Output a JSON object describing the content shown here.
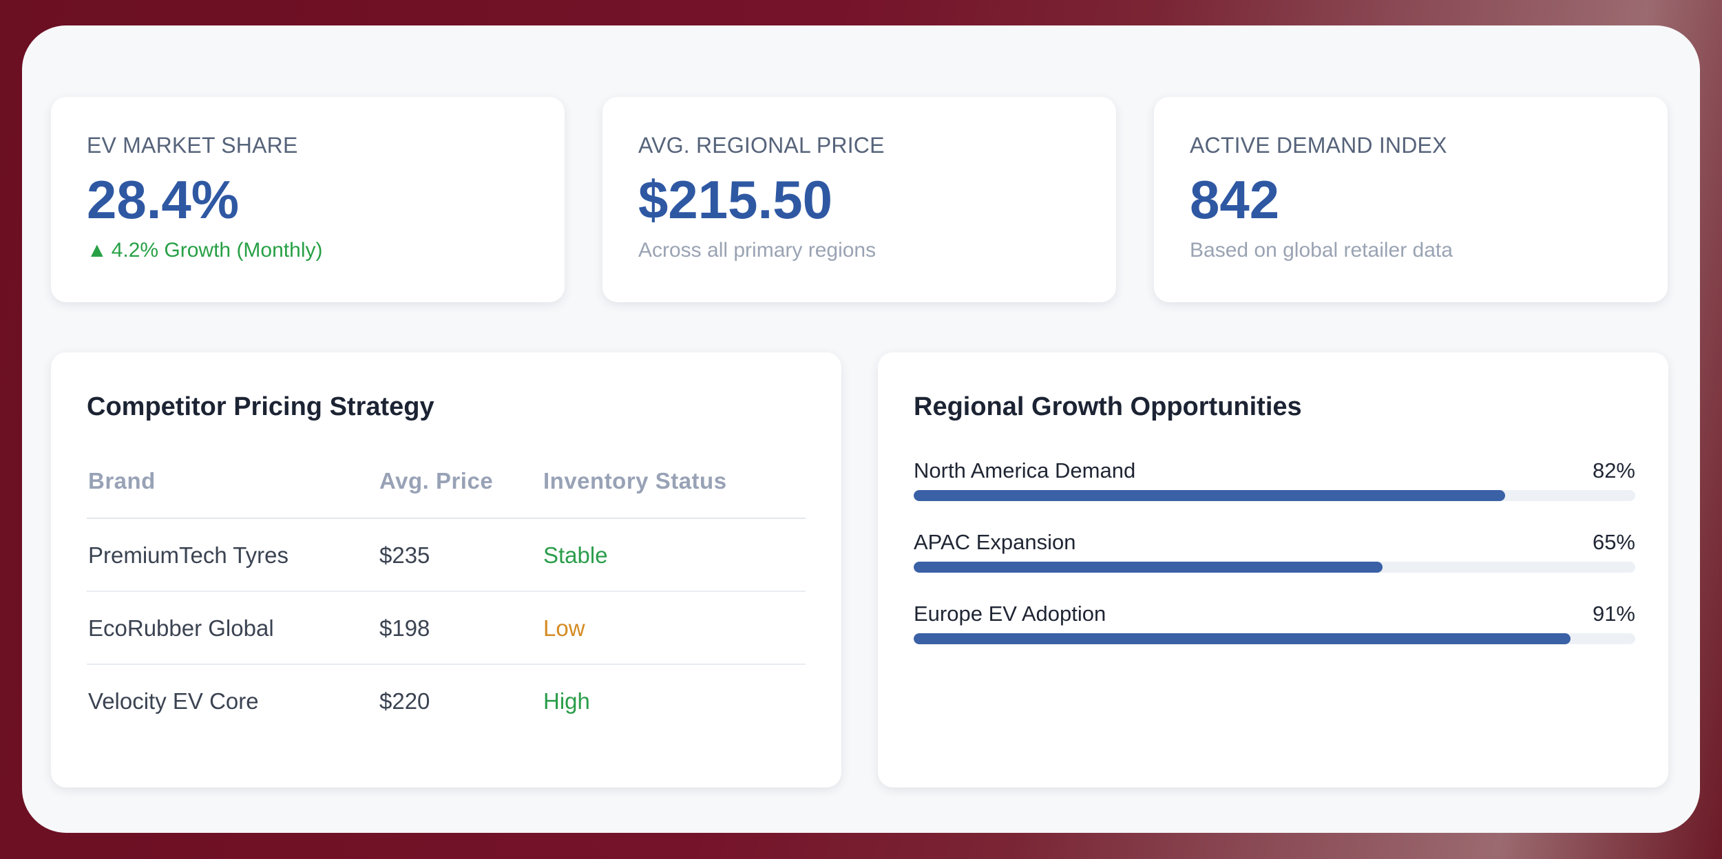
{
  "kpis": [
    {
      "label": "EV MARKET SHARE",
      "value": "28.4%",
      "sub_icon": "▲",
      "sub_text": "4.2% Growth (Monthly)",
      "sub_color": "#27a046"
    },
    {
      "label": "AVG. REGIONAL PRICE",
      "value": "$215.50",
      "sub_text": "Across all primary regions"
    },
    {
      "label": "ACTIVE DEMAND INDEX",
      "value": "842",
      "sub_text": "Based on global retailer data"
    }
  ],
  "pricing": {
    "title": "Competitor Pricing Strategy",
    "columns": [
      "Brand",
      "Avg. Price",
      "Inventory Status"
    ],
    "rows": [
      {
        "brand": "PremiumTech Tyres",
        "price": "$235",
        "status": "Stable"
      },
      {
        "brand": "EcoRubber Global",
        "price": "$198",
        "status": "Low"
      },
      {
        "brand": "Velocity EV Core",
        "price": "$220",
        "status": "High"
      }
    ],
    "status_colors": {
      "Stable": "#2a9d4a",
      "Low": "#d58a22",
      "High": "#2a9d4a"
    }
  },
  "growth": {
    "title": "Regional Growth Opportunities",
    "items": [
      {
        "label": "North America Demand",
        "percent": "82%",
        "value": 82
      },
      {
        "label": "APAC Expansion",
        "percent": "65%",
        "value": 65
      },
      {
        "label": "Europe EV Adoption",
        "percent": "91%",
        "value": 91
      }
    ],
    "bar_color": "#3a60a6"
  },
  "colors": {
    "accent": "#2f58a3",
    "background": "#75132a"
  }
}
